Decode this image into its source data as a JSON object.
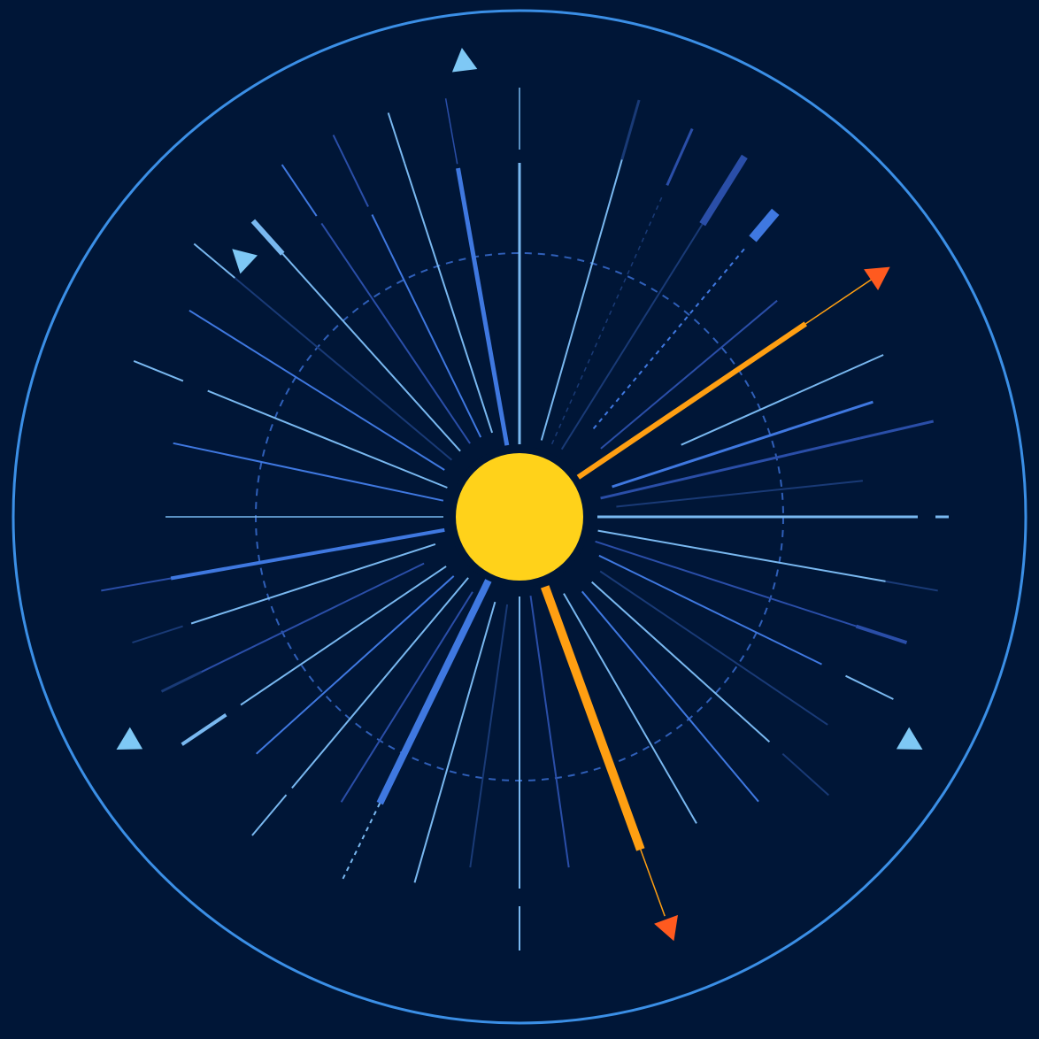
{
  "illustration": {
    "palette": {
      "background": "#001637",
      "outer_ring": "#3b8fe6",
      "dashed_ring": "#2f5fb8",
      "core": "#ffd21a",
      "core_outline": "#001637",
      "accent": "#ff9f12",
      "arrowhead": "#ff5a1f",
      "pointer": "#7ec8f5",
      "ray_light": "#79b8f0",
      "ray_mid": "#3f78e0",
      "ray_deep": "#2a4ea8",
      "ray_faint": "#193a76"
    },
    "rays": [
      {
        "angle": 0,
        "from": 88,
        "to": 400,
        "width": 3,
        "tone": "ray_light",
        "segments": [
          [
            400,
            450
          ],
          [
            470,
            485
          ]
        ]
      },
      {
        "angle": 6,
        "from": 110,
        "to": 390,
        "width": 2,
        "tone": "ray_faint"
      },
      {
        "angle": 13,
        "from": 94,
        "to": 395,
        "width": 3,
        "tone": "ray_deep",
        "segments": [
          [
            395,
            480
          ]
        ]
      },
      {
        "angle": 18,
        "from": 110,
        "to": 420,
        "width": 3,
        "tone": "ray_mid"
      },
      {
        "angle": 24,
        "from": 200,
        "to": 450,
        "width": 2,
        "tone": "ray_light"
      },
      {
        "angle": 34,
        "from": 80,
        "to": 390,
        "width": 6,
        "tone": "accent",
        "segments": [
          [
            390,
            480
          ]
        ],
        "segment_width": 1.5,
        "arrow": 505
      },
      {
        "angle": 40,
        "from": 120,
        "to": 380,
        "width": 2,
        "tone": "ray_deep"
      },
      {
        "angle": 50,
        "from": 130,
        "to": 400,
        "width": 2,
        "tone": "ray_mid",
        "dash": true,
        "segments": [
          [
            410,
            450
          ]
        ],
        "segment_width": 11,
        "segment_tone": "ray_mid"
      },
      {
        "angle": 58,
        "from": 90,
        "to": 390,
        "width": 2,
        "tone": "ray_faint",
        "segments": [
          [
            390,
            480
          ]
        ],
        "segment_width": 8,
        "segment_tone": "ray_deep"
      },
      {
        "angle": 66,
        "from": 90,
        "to": 400,
        "width": 1.5,
        "tone": "ray_faint",
        "dash": true,
        "segments": [
          [
            410,
            480
          ]
        ],
        "segment_width": 3,
        "segment_tone": "ray_deep"
      },
      {
        "angle": 74,
        "from": 90,
        "to": 420,
        "width": 2,
        "tone": "ray_light",
        "segments": [
          [
            420,
            490
          ]
        ],
        "segment_width": 3,
        "segment_tone": "ray_faint"
      },
      {
        "angle": 90,
        "from": 82,
        "to": 400,
        "width": 3,
        "tone": "ray_light",
        "segments": [
          [
            415,
            485
          ]
        ],
        "segment_width": 1.5
      },
      {
        "angle": 100,
        "from": 82,
        "to": 400,
        "width": 5,
        "tone": "ray_mid",
        "segments": [
          [
            405,
            480
          ]
        ],
        "segment_width": 1.5,
        "segment_tone": "ray_deep"
      },
      {
        "angle": 108,
        "from": 100,
        "to": 420,
        "width": 2,
        "tone": "ray_light",
        "segments": [
          [
            420,
            480
          ]
        ]
      },
      {
        "angle": 116,
        "from": 100,
        "to": 380,
        "width": 2,
        "tone": "ray_mid",
        "segments": [
          [
            390,
            480
          ]
        ],
        "segment_width": 2,
        "segment_tone": "ray_deep"
      },
      {
        "angle": 124,
        "from": 100,
        "to": 400,
        "width": 2,
        "tone": "ray_deep",
        "segments": [
          [
            410,
            480
          ]
        ],
        "segment_width": 2,
        "segment_tone": "ray_mid"
      },
      {
        "angle": 132,
        "from": 100,
        "to": 400,
        "width": 2,
        "tone": "ray_light",
        "segments": [
          [
            400,
            450
          ]
        ],
        "segment_width": 6
      },
      {
        "angle": 140,
        "from": 100,
        "to": 420,
        "width": 2,
        "tone": "ray_faint",
        "segments": [
          [
            420,
            480
          ]
        ],
        "segment_width": 2,
        "segment_tone": "ray_light"
      },
      {
        "angle": 148,
        "from": 100,
        "to": 440,
        "width": 2,
        "tone": "ray_mid"
      },
      {
        "angle": 158,
        "from": 88,
        "to": 380,
        "width": 2,
        "tone": "ray_light",
        "segments": [
          [
            410,
            470
          ]
        ],
        "segment_width": 2
      },
      {
        "angle": 168,
        "from": 88,
        "to": 400,
        "width": 2,
        "tone": "ray_mid"
      },
      {
        "angle": 180,
        "from": 86,
        "to": 400,
        "width": 1.5,
        "tone": "ray_light"
      },
      {
        "angle": 190,
        "from": 86,
        "to": 400,
        "width": 4,
        "tone": "ray_mid",
        "segments": [
          [
            400,
            480
          ]
        ],
        "segment_width": 2,
        "segment_tone": "ray_deep"
      },
      {
        "angle": 198,
        "from": 100,
        "to": 390,
        "width": 2,
        "tone": "ray_light",
        "segments": [
          [
            400,
            460
          ]
        ],
        "segment_width": 2,
        "segment_tone": "ray_faint"
      },
      {
        "angle": 206,
        "from": 120,
        "to": 400,
        "width": 2,
        "tone": "ray_deep",
        "segments": [
          [
            400,
            450
          ]
        ],
        "segment_width": 3,
        "segment_tone": "ray_faint"
      },
      {
        "angle": 214,
        "from": 100,
        "to": 380,
        "width": 2,
        "tone": "ray_light",
        "segments": [
          [
            400,
            460
          ]
        ],
        "segment_width": 4,
        "segment_tone": "ray_light"
      },
      {
        "angle": 222,
        "from": 100,
        "to": 400,
        "width": 2,
        "tone": "ray_mid"
      },
      {
        "angle": 230,
        "from": 90,
        "to": 400,
        "width": 2,
        "tone": "ray_light",
        "segments": [
          [
            410,
            470
          ]
        ],
        "segment_width": 2
      },
      {
        "angle": 238,
        "from": 100,
        "to": 380,
        "width": 2,
        "tone": "ray_deep"
      },
      {
        "angle": 244,
        "from": 80,
        "to": 360,
        "width": 8,
        "tone": "ray_mid",
        "segments": [
          [
            360,
            460
          ]
        ],
        "segment_width": 2,
        "segment_tone": "ray_light",
        "segment_dash": true
      },
      {
        "angle": 254,
        "from": 100,
        "to": 430,
        "width": 2,
        "tone": "ray_light"
      },
      {
        "angle": 262,
        "from": 100,
        "to": 400,
        "width": 2,
        "tone": "ray_faint"
      },
      {
        "angle": 270,
        "from": 90,
        "to": 420,
        "width": 2,
        "tone": "ray_light",
        "segments": [
          [
            440,
            490
          ]
        ]
      },
      {
        "angle": 278,
        "from": 90,
        "to": 400,
        "width": 2,
        "tone": "ray_deep"
      },
      {
        "angle": 290,
        "from": 84,
        "to": 400,
        "width": 10,
        "tone": "accent",
        "segments": [
          [
            400,
            480
          ]
        ],
        "segment_width": 1.5,
        "arrow": 510
      },
      {
        "angle": 300,
        "from": 100,
        "to": 400,
        "width": 2,
        "tone": "ray_light"
      },
      {
        "angle": 310,
        "from": 110,
        "to": 420,
        "width": 2,
        "tone": "ray_mid"
      },
      {
        "angle": 318,
        "from": 110,
        "to": 380,
        "width": 2,
        "tone": "ray_light",
        "segments": [
          [
            400,
            470
          ]
        ],
        "segment_width": 2,
        "segment_tone": "ray_faint"
      },
      {
        "angle": 326,
        "from": 110,
        "to": 420,
        "width": 2,
        "tone": "ray_faint"
      },
      {
        "angle": 334,
        "from": 100,
        "to": 380,
        "width": 2,
        "tone": "ray_mid",
        "segments": [
          [
            410,
            470
          ]
        ],
        "segment_width": 2,
        "segment_tone": "ray_light"
      },
      {
        "angle": 342,
        "from": 90,
        "to": 400,
        "width": 2,
        "tone": "ray_deep",
        "segments": [
          [
            400,
            460
          ]
        ],
        "segment_width": 4,
        "segment_tone": "ray_deep"
      },
      {
        "angle": 350,
        "from": 90,
        "to": 420,
        "width": 2,
        "tone": "ray_light",
        "segments": [
          [
            420,
            480
          ]
        ],
        "segment_width": 2,
        "segment_tone": "ray_faint"
      }
    ],
    "pointers": [
      {
        "angle": 97,
        "distance": 520
      },
      {
        "angle": 137,
        "distance": 430
      },
      {
        "angle": 210,
        "distance": 512
      },
      {
        "angle": 330,
        "distance": 512
      }
    ]
  }
}
